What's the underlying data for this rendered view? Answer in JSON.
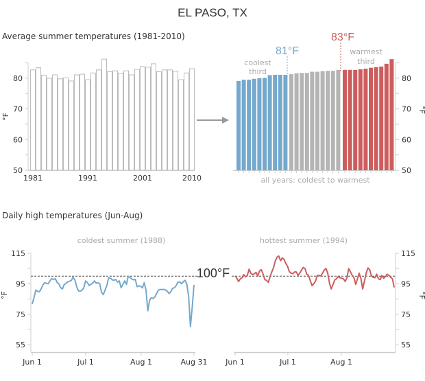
{
  "title": "EL PASO, TX",
  "colors": {
    "cool": "#74a8cc",
    "mid": "#b4b4b4",
    "warm": "#cd5d5d",
    "axis": "#cccccc",
    "text": "#333333"
  },
  "chart_data": [
    {
      "type": "bar",
      "title": "Average summer temperatures (1981-2010)",
      "ylabel": "°F",
      "ylim": [
        50,
        85
      ],
      "yticks": [
        "50",
        "60",
        "70",
        "80"
      ],
      "xtick_labels": [
        "1981",
        "1991",
        "2001",
        "2010"
      ],
      "categories": [
        1981,
        1982,
        1983,
        1984,
        1985,
        1986,
        1987,
        1988,
        1989,
        1990,
        1991,
        1992,
        1993,
        1994,
        1995,
        1996,
        1997,
        1998,
        1999,
        2000,
        2001,
        2002,
        2003,
        2004,
        2005,
        2006,
        2007,
        2008,
        2009,
        2010
      ],
      "values": [
        82.7,
        83.4,
        81.0,
        80.0,
        81.1,
        79.8,
        80.1,
        79.1,
        81.1,
        81.3,
        79.5,
        81.7,
        82.7,
        86.2,
        82.1,
        82.4,
        81.6,
        82.4,
        81.1,
        82.9,
        83.8,
        83.6,
        84.7,
        82.1,
        82.7,
        82.7,
        82.3,
        79.5,
        81.7,
        83.1
      ],
      "bar_fill": "none"
    },
    {
      "type": "bar",
      "xlabel": "all years: coldest to warmest",
      "ylabel": "°F",
      "ylim": [
        50,
        85
      ],
      "yticks": [
        "50",
        "60",
        "70",
        "80"
      ],
      "sorted": "ascending",
      "groups": [
        {
          "label_line1": "coolest",
          "label_line2": "third",
          "threshold_label": "81°F",
          "color": "#74a8cc"
        },
        {
          "color": "#b4b4b4"
        },
        {
          "label_line1": "warmest",
          "label_line2": "third",
          "threshold_label": "83°F",
          "color": "#cd5d5d"
        }
      ]
    },
    {
      "type": "line",
      "section_title": "Daily high temperatures (Jun-Aug)",
      "title": "coldest summer (1988)",
      "ylabel": "°F",
      "ylim": [
        50,
        115
      ],
      "yticks": [
        "55",
        "75",
        "95",
        "115"
      ],
      "xtick_labels": [
        "Jun 1",
        "Jul 1",
        "Aug 1",
        "Aug 31"
      ],
      "reference_line": {
        "value": 100,
        "label": "100°F"
      },
      "color": "#74a8cc",
      "values": [
        81.8,
        86,
        90.9,
        90,
        89.8,
        91.6,
        94.3,
        95.7,
        95.4,
        95,
        96.9,
        98.4,
        97.9,
        98.4,
        95.8,
        95,
        92.4,
        91.6,
        94.6,
        95.2,
        96.4,
        96.6,
        97.3,
        99.2,
        97.6,
        93.2,
        90.4,
        90.1,
        90.8,
        92.4,
        96.9,
        95.8,
        93.9,
        94.6,
        95.4,
        96.9,
        95.4,
        95.7,
        95,
        89.4,
        87.9,
        90.9,
        93.9,
        98.9,
        98.7,
        97.6,
        97.3,
        97.9,
        96.1,
        96.9,
        92.4,
        94.6,
        96.9,
        94.6,
        99.9,
        99.2,
        98.2,
        97.6,
        97.9,
        93.1,
        93.7,
        93.4,
        92.3,
        95.7,
        90.9,
        77.3,
        84.1,
        85.9,
        85.3,
        86.4,
        88.6,
        90.9,
        91.3,
        91.2,
        91.3,
        90.9,
        90.1,
        88.6,
        89.8,
        92.1,
        92.4,
        93.9,
        96.1,
        96.1,
        95,
        96.4,
        97.3,
        94.6,
        86.7,
        67,
        79.5,
        94.3
      ]
    },
    {
      "type": "line",
      "title": "hottest summer (1994)",
      "ylabel": "°F",
      "ylim": [
        50,
        115
      ],
      "yticks": [
        "55",
        "75",
        "95",
        "115"
      ],
      "xtick_labels": [
        "Jun 1",
        "Jul 1",
        "Aug 1"
      ],
      "reference_line": {
        "value": 100
      },
      "color": "#cd5d5d",
      "values": [
        100.2,
        98.7,
        96.5,
        98.3,
        99,
        101,
        99.5,
        100.5,
        104.6,
        102,
        101,
        101.6,
        102.5,
        100.1,
        103.5,
        104.3,
        101.3,
        97.8,
        97.2,
        96,
        99.8,
        102.8,
        105.7,
        109.9,
        112.5,
        113.2,
        110.2,
        112,
        111,
        108.4,
        106.5,
        103,
        102,
        101.6,
        102.8,
        102.8,
        100.5,
        102,
        104,
        105.7,
        105,
        101.3,
        100.5,
        97.1,
        93.8,
        95,
        96.8,
        100.5,
        100.5,
        100.1,
        102,
        104,
        105,
        102,
        95.3,
        91.6,
        94.6,
        97.5,
        98.3,
        99.8,
        99,
        98.6,
        98.3,
        96.5,
        99,
        105,
        102.8,
        100.5,
        99,
        94.6,
        98.3,
        102,
        98.3,
        91.6,
        96.8,
        102,
        105.4,
        104.3,
        100.1,
        99.3,
        99,
        101.3,
        98.3,
        97.8,
        100.5,
        98.6,
        99.8,
        101.3,
        100.5,
        99.3,
        98.3,
        92.6
      ]
    }
  ]
}
